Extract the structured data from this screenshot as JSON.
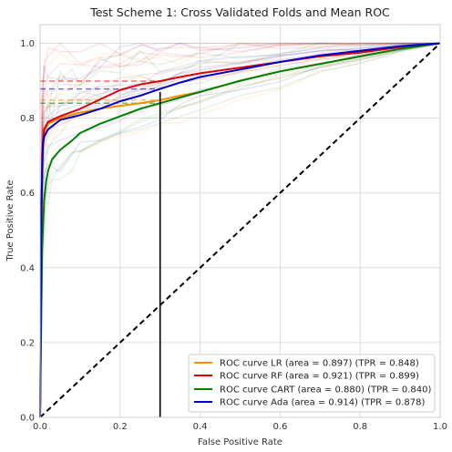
{
  "chart_data": {
    "type": "line",
    "title": "Test Scheme 1: Cross Validated Folds and Mean ROC",
    "xlabel": "False Positive Rate",
    "ylabel": "True Positive Rate",
    "xlim": [
      0,
      1
    ],
    "ylim": [
      0,
      1.05
    ],
    "grid": true,
    "legend_position": "bottom-right",
    "x_ticks": [
      "0.0",
      "0.2",
      "0.4",
      "0.6",
      "0.8",
      "1.0"
    ],
    "y_ticks": [
      "0.0",
      "0.2",
      "0.4",
      "0.6",
      "0.8",
      "1.0"
    ],
    "threshold_fpr": 0.3,
    "chance_line": {
      "x": [
        0,
        1
      ],
      "y": [
        0,
        1
      ]
    },
    "series": [
      {
        "name": "ROC curve LR (area = 0.897) (TPR = 0.848)",
        "color": "#ff8c00",
        "tpr_at_threshold": 0.848,
        "x": [
          0,
          0.005,
          0.01,
          0.02,
          0.05,
          0.1,
          0.15,
          0.2,
          0.25,
          0.3,
          0.35,
          0.4,
          0.5,
          0.6,
          0.7,
          0.8,
          0.9,
          1.0
        ],
        "y": [
          0,
          0.66,
          0.76,
          0.785,
          0.8,
          0.815,
          0.825,
          0.833,
          0.84,
          0.848,
          0.86,
          0.87,
          0.9,
          0.925,
          0.945,
          0.965,
          0.985,
          1.0
        ]
      },
      {
        "name": "ROC curve RF (area = 0.921) (TPR = 0.899)",
        "color": "#e00000",
        "tpr_at_threshold": 0.899,
        "x": [
          0,
          0.005,
          0.01,
          0.02,
          0.05,
          0.1,
          0.15,
          0.2,
          0.25,
          0.3,
          0.35,
          0.4,
          0.5,
          0.6,
          0.7,
          0.8,
          0.9,
          1.0
        ],
        "y": [
          0,
          0.7,
          0.77,
          0.79,
          0.805,
          0.825,
          0.85,
          0.875,
          0.89,
          0.899,
          0.91,
          0.92,
          0.935,
          0.95,
          0.965,
          0.975,
          0.99,
          1.0
        ]
      },
      {
        "name": "ROC curve CART (area = 0.880) (TPR = 0.840)",
        "color": "#008000",
        "tpr_at_threshold": 0.84,
        "x": [
          0,
          0.005,
          0.01,
          0.015,
          0.02,
          0.03,
          0.05,
          0.08,
          0.1,
          0.15,
          0.2,
          0.25,
          0.3,
          0.4,
          0.5,
          0.6,
          0.7,
          0.8,
          0.9,
          1.0
        ],
        "y": [
          0,
          0.45,
          0.58,
          0.63,
          0.66,
          0.69,
          0.715,
          0.74,
          0.76,
          0.785,
          0.805,
          0.825,
          0.84,
          0.87,
          0.9,
          0.925,
          0.945,
          0.965,
          0.985,
          1.0
        ]
      },
      {
        "name": "ROC curve Ada (area = 0.914) (TPR = 0.878)",
        "color": "#0000cd",
        "tpr_at_threshold": 0.878,
        "x": [
          0,
          0.003,
          0.007,
          0.01,
          0.02,
          0.05,
          0.1,
          0.15,
          0.2,
          0.25,
          0.3,
          0.35,
          0.4,
          0.5,
          0.6,
          0.7,
          0.8,
          0.9,
          1.0
        ],
        "y": [
          0,
          0.55,
          0.73,
          0.75,
          0.77,
          0.795,
          0.808,
          0.825,
          0.845,
          0.86,
          0.878,
          0.895,
          0.91,
          0.93,
          0.95,
          0.968,
          0.98,
          0.992,
          1.0
        ]
      }
    ]
  }
}
